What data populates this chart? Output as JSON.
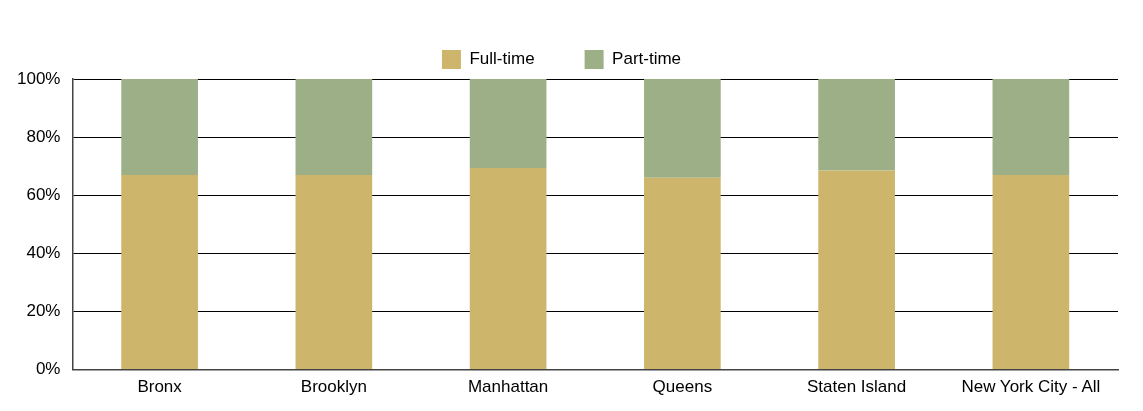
{
  "chart_data": {
    "type": "bar",
    "stacked": true,
    "categories": [
      "Bronx",
      "Brooklyn",
      "Manhattan",
      "Queens",
      "Staten Island",
      "New York City - All"
    ],
    "series": [
      {
        "name": "Full-time",
        "color": "#cdb66c",
        "values": [
          67,
          67,
          69.4,
          66,
          68.5,
          67
        ]
      },
      {
        "name": "Part-time",
        "color": "#9caf87",
        "values": [
          33,
          33,
          30.6,
          34,
          31.5,
          33
        ]
      }
    ],
    "ylim": [
      0,
      100
    ],
    "yticks": [
      {
        "value": 0,
        "label": "0%"
      },
      {
        "value": 20,
        "label": "20%"
      },
      {
        "value": 40,
        "label": "40%"
      },
      {
        "value": 60,
        "label": "60%"
      },
      {
        "value": 80,
        "label": "80%"
      },
      {
        "value": 100,
        "label": "100%"
      }
    ],
    "grid": "y",
    "legend": "top"
  }
}
